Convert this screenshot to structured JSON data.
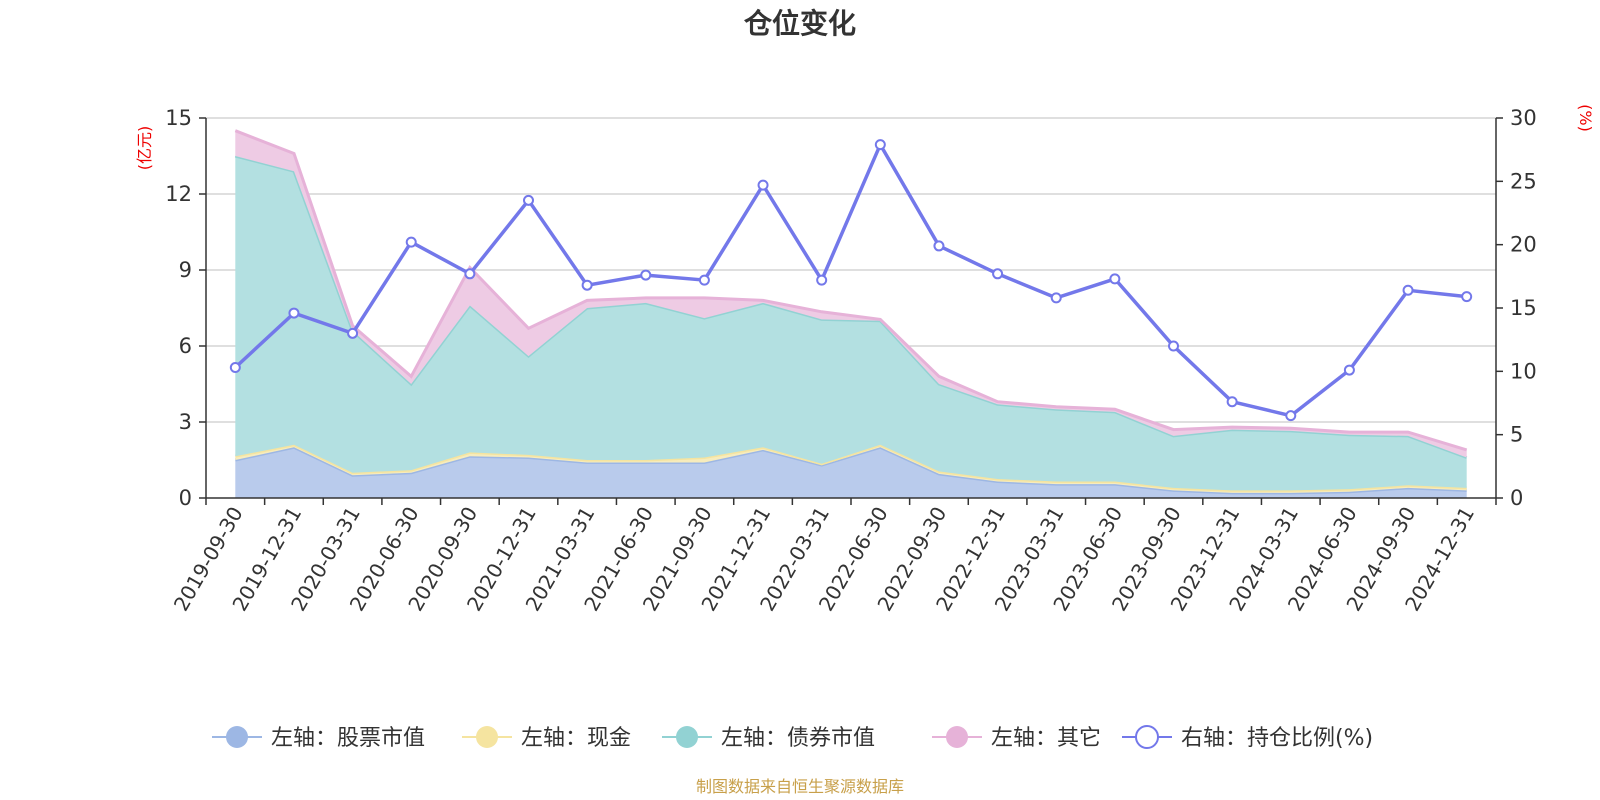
{
  "chart_data": {
    "type": "area",
    "title": "仓位变化",
    "left_axis_unit": "(亿元)",
    "right_axis_unit": "(%)",
    "categories": [
      "2019-09-30",
      "2019-12-31",
      "2020-03-31",
      "2020-06-30",
      "2020-09-30",
      "2020-12-31",
      "2021-03-31",
      "2021-06-30",
      "2021-09-30",
      "2021-12-31",
      "2022-03-31",
      "2022-06-30",
      "2022-09-30",
      "2022-12-31",
      "2023-03-31",
      "2023-06-30",
      "2023-09-30",
      "2023-12-31",
      "2024-03-31",
      "2024-06-30",
      "2024-09-30",
      "2024-12-31"
    ],
    "left_ylim": [
      0,
      15
    ],
    "left_ticks": [
      0,
      3,
      6,
      9,
      12,
      15
    ],
    "right_ylim": [
      0,
      30
    ],
    "right_ticks": [
      0,
      5,
      10,
      15,
      20,
      25,
      30
    ],
    "stacked": true,
    "grid": true,
    "legend_position": "bottom",
    "series": [
      {
        "name": "左轴：股票市值",
        "axis": "left",
        "color": "#9db7e4",
        "fill": "#b9cbec",
        "values": [
          1.5,
          2.0,
          0.9,
          1.0,
          1.65,
          1.6,
          1.4,
          1.4,
          1.4,
          1.9,
          1.3,
          2.0,
          0.95,
          0.65,
          0.55,
          0.55,
          0.3,
          0.2,
          0.2,
          0.25,
          0.4,
          0.3
        ]
      },
      {
        "name": "左轴：现金",
        "axis": "left",
        "color": "#f5e4a0",
        "fill": "#f7ecbc",
        "values": [
          0.15,
          0.1,
          0.1,
          0.1,
          0.15,
          0.1,
          0.1,
          0.1,
          0.2,
          0.1,
          0.05,
          0.1,
          0.1,
          0.1,
          0.1,
          0.1,
          0.1,
          0.1,
          0.1,
          0.1,
          0.1,
          0.1
        ]
      },
      {
        "name": "左轴：债券市值",
        "axis": "left",
        "color": "#92d2d3",
        "fill": "#b3e0e1",
        "values": [
          11.85,
          10.8,
          5.6,
          3.4,
          5.8,
          3.9,
          6.0,
          6.2,
          5.5,
          5.7,
          5.7,
          4.9,
          3.45,
          2.95,
          2.85,
          2.75,
          2.05,
          2.4,
          2.35,
          2.15,
          1.95,
          1.2
        ]
      },
      {
        "name": "左轴：其它",
        "axis": "left",
        "color": "#e6b2d8",
        "fill": "#eecbe4",
        "values": [
          1.0,
          0.7,
          0.2,
          0.3,
          1.5,
          1.1,
          0.3,
          0.2,
          0.8,
          0.1,
          0.3,
          0.05,
          0.3,
          0.1,
          0.1,
          0.1,
          0.25,
          0.1,
          0.1,
          0.1,
          0.15,
          0.3
        ]
      },
      {
        "name": "右轴：持仓比例(%)",
        "axis": "right",
        "color": "#7378ea",
        "values": [
          10.3,
          14.6,
          13.0,
          20.2,
          17.7,
          23.5,
          16.8,
          17.6,
          17.2,
          24.7,
          17.2,
          27.9,
          19.9,
          17.7,
          15.8,
          17.3,
          12.0,
          7.6,
          6.5,
          10.1,
          16.4,
          15.9
        ]
      }
    ]
  },
  "source_text": "制图数据来自恒生聚源数据库"
}
